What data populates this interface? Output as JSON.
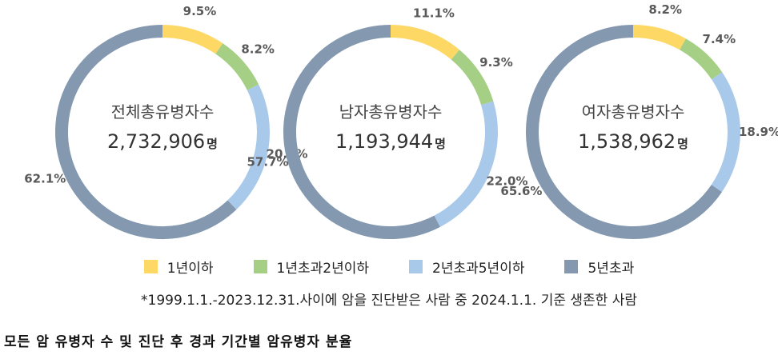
{
  "chart_data": [
    {
      "type": "pie",
      "center_title": "전체총유병자수",
      "center_value": "2,732,906",
      "center_unit": "명",
      "slices": [
        {
          "category": "1년이하",
          "value": 9.5,
          "label": "9.5%"
        },
        {
          "category": "1년초과2년이하",
          "value": 8.2,
          "label": "8.2%"
        },
        {
          "category": "2년초과5년이하",
          "value": 20.2,
          "label": "20.2%"
        },
        {
          "category": "5년초과",
          "value": 62.1,
          "label": "62.1%",
          "label_color": "#c00000"
        }
      ]
    },
    {
      "type": "pie",
      "center_title": "남자총유병자수",
      "center_value": "1,193,944",
      "center_unit": "명",
      "slices": [
        {
          "category": "1년이하",
          "value": 11.1,
          "label": "11.1%"
        },
        {
          "category": "1년초과2년이하",
          "value": 9.3,
          "label": "9.3%"
        },
        {
          "category": "2년초과5년이하",
          "value": 22.0,
          "label": "22.0%"
        },
        {
          "category": "5년초과",
          "value": 57.7,
          "label": "57.7%"
        }
      ]
    },
    {
      "type": "pie",
      "center_title": "여자총유병자수",
      "center_value": "1,538,962",
      "center_unit": "명",
      "slices": [
        {
          "category": "1년이하",
          "value": 8.2,
          "label": "8.2%"
        },
        {
          "category": "1년초과2년이하",
          "value": 7.4,
          "label": "7.4%"
        },
        {
          "category": "2년초과5년이하",
          "value": 18.9,
          "label": "18.9%"
        },
        {
          "category": "5년초과",
          "value": 65.6,
          "label": "65.6%"
        }
      ]
    }
  ],
  "legend": [
    {
      "label": "1년이하",
      "color": "#fdd865"
    },
    {
      "label": "1년초과2년이하",
      "color": "#a4cf84"
    },
    {
      "label": "2년초과5년이하",
      "color": "#a8c9ea"
    },
    {
      "label": "5년초과",
      "color": "#8498b0"
    }
  ],
  "footnote": "*1999.1.1.-2023.12.31.사이에 암을 진단받은 사람 중 2024.1.1. 기준 생존한 사람",
  "caption": "모든 암 유병자 수 및 진단 후 경과 기간별 암유병자 분율"
}
